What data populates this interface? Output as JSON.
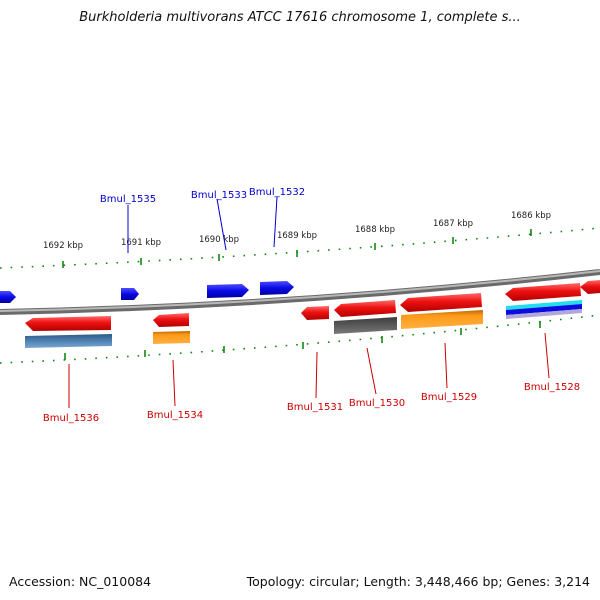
{
  "title": "Burkholderia multivorans ATCC 17616 chromosome 1, complete s...",
  "footer": {
    "accession": "Accession: NC_010084",
    "stats": "Topology: circular; Length: 3,448,466 bp; Genes: 3,214"
  },
  "colors": {
    "forward_label": "#0000cc",
    "reverse_label": "#cc0000",
    "tick": "#118811",
    "backbone": "#8a8a8a"
  },
  "kbp_markers": [
    "1692 kbp",
    "1691 kbp",
    "1690 kbp",
    "1689 kbp",
    "1688 kbp",
    "1687 kbp",
    "1686 kbp"
  ],
  "forward_labels": [
    "Bmul_1535",
    "Bmul_1533",
    "Bmul_1532"
  ],
  "reverse_labels": [
    "Bmul_1536",
    "Bmul_1534",
    "Bmul_1531",
    "Bmul_1530",
    "Bmul_1529",
    "Bmul_1528"
  ]
}
